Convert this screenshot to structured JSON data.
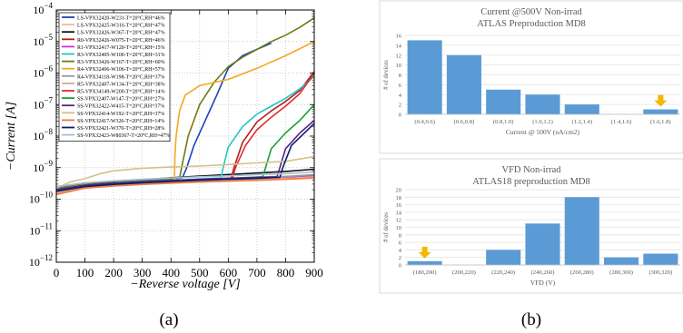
{
  "figure": {
    "panel_a_caption": "(a)",
    "panel_b_caption": "(b)"
  },
  "chart_data": [
    {
      "type": "line",
      "xlabel": "−Reverse voltage [V]",
      "ylabel": "−Current [A]",
      "xlim": [
        0,
        900
      ],
      "ylim_log10": [
        -12,
        -4
      ],
      "yscale": "log",
      "x_ticks": [
        0,
        100,
        200,
        300,
        400,
        500,
        600,
        700,
        800,
        900
      ],
      "y_ticks": [
        {
          "exp": -4,
          "label": "10",
          "sup": "−4"
        },
        {
          "exp": -5,
          "label": "10",
          "sup": "−5"
        },
        {
          "exp": -6,
          "label": "10",
          "sup": "−6"
        },
        {
          "exp": -7,
          "label": "10",
          "sup": "−7"
        },
        {
          "exp": -8,
          "label": "10",
          "sup": "−8"
        },
        {
          "exp": -9,
          "label": "10",
          "sup": "−9"
        },
        {
          "exp": -10,
          "label": "10",
          "sup": "−10"
        },
        {
          "exp": -11,
          "label": "10",
          "sup": "−11"
        },
        {
          "exp": -12,
          "label": "10",
          "sup": "−12"
        }
      ],
      "grid": true,
      "legend_position": "top-left",
      "series": [
        {
          "name": "LS-VPX32420-W231-T=20°C,RH=46%",
          "color": "#1f3fbf",
          "points": [
            [
              0,
              -9.7
            ],
            [
              100,
              -9.55
            ],
            [
              200,
              -9.48
            ],
            [
              300,
              -9.42
            ],
            [
              400,
              -9.36
            ],
            [
              440,
              -9.32
            ],
            [
              455,
              -9.0
            ],
            [
              480,
              -8.3
            ],
            [
              520,
              -7.5
            ],
            [
              560,
              -6.7
            ],
            [
              600,
              -5.85
            ],
            [
              650,
              -5.45
            ],
            [
              700,
              -5.25
            ],
            [
              750,
              -5.05
            ]
          ]
        },
        {
          "name": "LS-VPX32425-W316-T=20°C,RH=47%",
          "color": "#f2b8a8",
          "points": [
            [
              0,
              -9.7
            ],
            [
              100,
              -9.55
            ],
            [
              200,
              -9.5
            ],
            [
              300,
              -9.45
            ],
            [
              400,
              -9.41
            ],
            [
              500,
              -9.37
            ],
            [
              600,
              -9.33
            ],
            [
              700,
              -9.3
            ],
            [
              800,
              -9.27
            ],
            [
              900,
              -9.23
            ]
          ]
        },
        {
          "name": "LS-VPX32426-W367-T=20°C,RH=47%",
          "color": "#111111",
          "points": [
            [
              0,
              -9.8
            ],
            [
              100,
              -9.55
            ],
            [
              200,
              -9.45
            ],
            [
              300,
              -9.38
            ],
            [
              400,
              -9.32
            ],
            [
              500,
              -9.27
            ],
            [
              600,
              -9.22
            ],
            [
              700,
              -9.17
            ],
            [
              800,
              -9.12
            ],
            [
              900,
              -9.05
            ]
          ]
        },
        {
          "name": "R0-VPX32426-W075-T=20°C,RH=46%",
          "color": "#b02020",
          "points": [
            [
              0,
              -9.75
            ],
            [
              100,
              -9.58
            ],
            [
              200,
              -9.52
            ],
            [
              300,
              -9.47
            ],
            [
              400,
              -9.43
            ],
            [
              500,
              -9.39
            ],
            [
              600,
              -9.35
            ],
            [
              610,
              -9.34
            ],
            [
              620,
              -9.0
            ],
            [
              650,
              -8.2
            ],
            [
              700,
              -7.55
            ],
            [
              750,
              -7.2
            ],
            [
              800,
              -6.9
            ],
            [
              850,
              -6.55
            ],
            [
              900,
              -5.95
            ]
          ]
        },
        {
          "name": "R1-VPX32417-W120-T=20°C,RH=15%",
          "color": "#cc33cc",
          "points": [
            [
              0,
              -9.75
            ],
            [
              100,
              -9.6
            ],
            [
              200,
              -9.53
            ],
            [
              300,
              -9.48
            ],
            [
              400,
              -9.44
            ],
            [
              500,
              -9.4
            ],
            [
              600,
              -9.36
            ],
            [
              700,
              -9.33
            ],
            [
              800,
              -9.3
            ],
            [
              900,
              -9.25
            ]
          ]
        },
        {
          "name": "R3-VPX32405-W100-T=20°C,RH=31%",
          "color": "#22c4c4",
          "points": [
            [
              0,
              -9.7
            ],
            [
              100,
              -9.55
            ],
            [
              200,
              -9.49
            ],
            [
              300,
              -9.44
            ],
            [
              400,
              -9.4
            ],
            [
              500,
              -9.36
            ],
            [
              575,
              -9.33
            ],
            [
              582,
              -9.0
            ],
            [
              600,
              -8.35
            ],
            [
              650,
              -7.7
            ],
            [
              700,
              -7.3
            ],
            [
              750,
              -7.05
            ],
            [
              800,
              -6.8
            ],
            [
              850,
              -6.5
            ],
            [
              900,
              -6.1
            ]
          ]
        },
        {
          "name": "R3-VPX33426-W167-T=20°C,RH=60%",
          "color": "#6e7a12",
          "points": [
            [
              0,
              -9.65
            ],
            [
              100,
              -9.5
            ],
            [
              200,
              -9.44
            ],
            [
              300,
              -9.39
            ],
            [
              400,
              -9.35
            ],
            [
              430,
              -9.33
            ],
            [
              437,
              -9.0
            ],
            [
              460,
              -8.0
            ],
            [
              500,
              -7.0
            ],
            [
              550,
              -6.3
            ],
            [
              600,
              -5.8
            ],
            [
              650,
              -5.5
            ],
            [
              700,
              -5.25
            ],
            [
              750,
              -5.0
            ],
            [
              800,
              -4.8
            ],
            [
              850,
              -4.55
            ],
            [
              900,
              -4.25
            ]
          ]
        },
        {
          "name": "R4-VPX32406-W106-T=20°C,RH=57%",
          "color": "#f5a623",
          "points": [
            [
              0,
              -9.8
            ],
            [
              100,
              -9.6
            ],
            [
              200,
              -9.54
            ],
            [
              300,
              -9.5
            ],
            [
              400,
              -9.47
            ],
            [
              412,
              -9.46
            ],
            [
              414,
              -8.6
            ],
            [
              418,
              -8.0
            ],
            [
              430,
              -7.2
            ],
            [
              450,
              -6.7
            ],
            [
              500,
              -6.4
            ],
            [
              600,
              -6.2
            ],
            [
              700,
              -5.85
            ],
            [
              800,
              -5.45
            ],
            [
              900,
              -5.0
            ]
          ]
        },
        {
          "name": "R4-VPX34118-W198-T=20°C,RH=37%",
          "color": "#999999",
          "points": [
            [
              0,
              -9.75
            ],
            [
              100,
              -9.6
            ],
            [
              200,
              -9.54
            ],
            [
              300,
              -9.49
            ],
            [
              400,
              -9.45
            ],
            [
              500,
              -9.41
            ],
            [
              600,
              -9.37
            ],
            [
              700,
              -9.33
            ],
            [
              800,
              -9.29
            ],
            [
              900,
              -9.22
            ]
          ]
        },
        {
          "name": "R5-VPX32407-W134-T=20°C,RH=38%",
          "color": "#d9a899",
          "points": [
            [
              0,
              -9.8
            ],
            [
              100,
              -9.64
            ],
            [
              200,
              -9.58
            ],
            [
              300,
              -9.53
            ],
            [
              400,
              -9.49
            ],
            [
              500,
              -9.45
            ],
            [
              600,
              -9.42
            ],
            [
              700,
              -9.38
            ],
            [
              800,
              -9.35
            ],
            [
              900,
              -9.3
            ]
          ]
        },
        {
          "name": "R5-VPX34149-W200-T=20°C,RH=14%",
          "color": "#e02b2b",
          "points": [
            [
              0,
              -9.7
            ],
            [
              100,
              -9.55
            ],
            [
              200,
              -9.5
            ],
            [
              300,
              -9.45
            ],
            [
              400,
              -9.41
            ],
            [
              500,
              -9.37
            ],
            [
              600,
              -9.34
            ],
            [
              615,
              -9.33
            ],
            [
              625,
              -9.0
            ],
            [
              660,
              -8.3
            ],
            [
              700,
              -7.8
            ],
            [
              750,
              -7.4
            ],
            [
              800,
              -7.05
            ],
            [
              850,
              -6.65
            ],
            [
              900,
              -6.0
            ]
          ]
        },
        {
          "name": "SS-VPX32407-W147-T=20°C,RH=27%",
          "color": "#1f9e3a",
          "points": [
            [
              0,
              -9.7
            ],
            [
              100,
              -9.56
            ],
            [
              200,
              -9.5
            ],
            [
              300,
              -9.45
            ],
            [
              400,
              -9.41
            ],
            [
              500,
              -9.37
            ],
            [
              600,
              -9.34
            ],
            [
              700,
              -9.3
            ],
            [
              720,
              -9.29
            ],
            [
              730,
              -9.0
            ],
            [
              750,
              -8.4
            ],
            [
              800,
              -7.9
            ],
            [
              850,
              -7.5
            ],
            [
              900,
              -7.0
            ]
          ]
        },
        {
          "name": "SS-VPX32422-W415-T=20°C,RH=37%",
          "color": "#5a1f8a",
          "points": [
            [
              0,
              -9.7
            ],
            [
              100,
              -9.56
            ],
            [
              200,
              -9.5
            ],
            [
              300,
              -9.45
            ],
            [
              400,
              -9.41
            ],
            [
              500,
              -9.37
            ],
            [
              600,
              -9.34
            ],
            [
              700,
              -9.31
            ],
            [
              770,
              -9.29
            ],
            [
              780,
              -9.0
            ],
            [
              800,
              -8.4
            ],
            [
              850,
              -7.9
            ],
            [
              900,
              -7.5
            ]
          ]
        },
        {
          "name": "SS-VPX32414-W192-T=20°C,RH=37%",
          "color": "#d4c08a",
          "points": [
            [
              0,
              -9.65
            ],
            [
              50,
              -9.45
            ],
            [
              100,
              -9.35
            ],
            [
              150,
              -9.2
            ],
            [
              200,
              -9.1
            ],
            [
              300,
              -9.02
            ],
            [
              400,
              -8.98
            ],
            [
              500,
              -8.95
            ],
            [
              600,
              -8.9
            ],
            [
              700,
              -8.85
            ],
            [
              800,
              -8.8
            ],
            [
              900,
              -8.65
            ]
          ]
        },
        {
          "name": "SS-VPX32417-W326-T=20°C,RH=14%",
          "color": "#f07a3a",
          "points": [
            [
              0,
              -9.85
            ],
            [
              100,
              -9.65
            ],
            [
              200,
              -9.58
            ],
            [
              300,
              -9.53
            ],
            [
              400,
              -9.49
            ],
            [
              500,
              -9.46
            ],
            [
              600,
              -9.43
            ],
            [
              700,
              -9.4
            ],
            [
              800,
              -9.37
            ],
            [
              900,
              -9.33
            ]
          ]
        },
        {
          "name": "SS-VPX32421-W370-T=20°C,RH=28%",
          "color": "#0a1f66",
          "points": [
            [
              0,
              -9.75
            ],
            [
              100,
              -9.6
            ],
            [
              200,
              -9.53
            ],
            [
              300,
              -9.48
            ],
            [
              400,
              -9.44
            ],
            [
              500,
              -9.4
            ],
            [
              600,
              -9.37
            ],
            [
              700,
              -9.34
            ],
            [
              780,
              -9.31
            ],
            [
              790,
              -9.0
            ],
            [
              820,
              -8.3
            ],
            [
              860,
              -7.95
            ],
            [
              900,
              -7.6
            ]
          ]
        },
        {
          "name": "SS-VPX32423-W80367-T=20°C,RH=47%",
          "color": "#a5c0d6",
          "points": [
            [
              0,
              -9.6
            ],
            [
              100,
              -9.48
            ],
            [
              200,
              -9.42
            ],
            [
              300,
              -9.37
            ],
            [
              400,
              -9.33
            ],
            [
              500,
              -9.29
            ],
            [
              600,
              -9.26
            ],
            [
              700,
              -9.22
            ],
            [
              800,
              -9.19
            ],
            [
              900,
              -9.14
            ]
          ]
        }
      ]
    },
    {
      "type": "bar",
      "title": "Current @500V Non-irrad",
      "subtitle": "ATLAS Preproduction MD8",
      "xlabel": "Current @ 500V (nA/cm2)",
      "ylabel": "# of devices",
      "categories": [
        "(0.4,0.6)",
        "(0.6,0.8)",
        "(0.8,1.0)",
        "(1.0,1.2)",
        "(1.2,1.4)",
        "(1.4,1.6)",
        "(1.6,1.8)"
      ],
      "values": [
        15,
        12,
        5,
        4,
        2,
        0,
        1
      ],
      "ylim": [
        0,
        16
      ],
      "y_ticks": [
        0,
        2,
        4,
        6,
        8,
        10,
        12,
        14,
        16
      ],
      "bar_color": "#5b9bd5",
      "marker_category_index": 6,
      "marker_color": "#f5b800",
      "grid": true
    },
    {
      "type": "bar",
      "title": "VFD Non-irrad",
      "subtitle": "ATLAS18 preproduction MD8",
      "xlabel": "VFD (V)",
      "ylabel": "# of devices",
      "categories": [
        "(180,200)",
        "(200,220)",
        "(220,240)",
        "(240,260)",
        "(260,280)",
        "(280,300)",
        "(300,320)"
      ],
      "values": [
        1,
        0,
        4,
        11,
        18,
        2,
        3
      ],
      "ylim": [
        0,
        20
      ],
      "y_ticks": [
        0,
        2,
        4,
        6,
        8,
        10,
        12,
        14,
        16,
        18,
        20
      ],
      "bar_color": "#5b9bd5",
      "marker_category_index": 0,
      "marker_color": "#f5b800",
      "grid": true
    }
  ]
}
